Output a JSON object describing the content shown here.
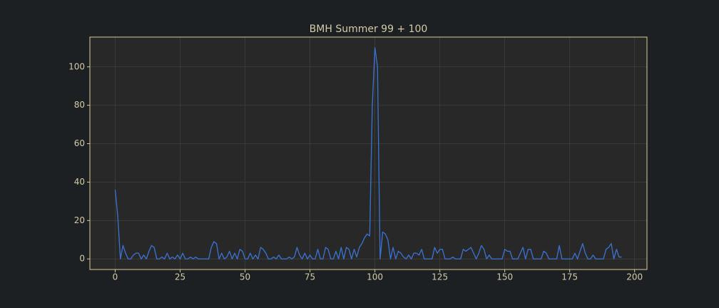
{
  "chart_data": {
    "type": "line",
    "title": "BMH Summer 99 + 100",
    "x": [
      0,
      1,
      2,
      3,
      4,
      5,
      6,
      7,
      8,
      9,
      10,
      11,
      12,
      13,
      14,
      15,
      16,
      17,
      18,
      19,
      20,
      21,
      22,
      23,
      24,
      25,
      26,
      27,
      28,
      29,
      30,
      31,
      32,
      33,
      34,
      35,
      36,
      37,
      38,
      39,
      40,
      41,
      42,
      43,
      44,
      45,
      46,
      47,
      48,
      49,
      50,
      51,
      52,
      53,
      54,
      55,
      56,
      57,
      58,
      59,
      60,
      61,
      62,
      63,
      64,
      65,
      66,
      67,
      68,
      69,
      70,
      71,
      72,
      73,
      74,
      75,
      76,
      77,
      78,
      79,
      80,
      81,
      82,
      83,
      84,
      85,
      86,
      87,
      88,
      89,
      90,
      91,
      92,
      93,
      94,
      95,
      96,
      97,
      98,
      99,
      100,
      101,
      102,
      103,
      104,
      105,
      106,
      107,
      108,
      109,
      110,
      111,
      112,
      113,
      114,
      115,
      116,
      117,
      118,
      119,
      120,
      121,
      122,
      123,
      124,
      125,
      126,
      127,
      128,
      129,
      130,
      131,
      132,
      133,
      134,
      135,
      136,
      137,
      138,
      139,
      140,
      141,
      142,
      143,
      144,
      145,
      146,
      147,
      148,
      149,
      150,
      151,
      152,
      153,
      154,
      155,
      156,
      157,
      158,
      159,
      160,
      161,
      162,
      163,
      164,
      165,
      166,
      167,
      168,
      169,
      170,
      171,
      172,
      173,
      174,
      175,
      176,
      177,
      178,
      179,
      180,
      181,
      182,
      183,
      184,
      185,
      186,
      187,
      188,
      189,
      190,
      191,
      192,
      193,
      194,
      195
    ],
    "series": [
      {
        "name": "BMH Summer 99 + 100",
        "color": "#3a6fc8",
        "values": [
          36,
          22,
          0,
          7,
          3,
          0,
          0,
          2,
          3,
          3,
          0,
          2,
          0,
          4,
          7,
          6,
          0,
          0,
          1,
          0,
          3,
          0,
          1,
          0,
          2,
          0,
          3,
          0,
          0,
          1,
          0,
          1,
          0,
          0,
          0,
          0,
          0,
          6,
          9,
          8,
          0,
          3,
          0,
          1,
          4,
          0,
          3,
          0,
          5,
          4,
          0,
          0,
          3,
          0,
          2,
          0,
          6,
          5,
          3,
          0,
          0,
          1,
          0,
          2,
          0,
          0,
          0,
          1,
          0,
          1,
          6,
          2,
          0,
          3,
          0,
          2,
          0,
          0,
          5,
          0,
          0,
          6,
          5,
          0,
          0,
          4,
          0,
          6,
          0,
          6,
          5,
          0,
          5,
          1,
          6,
          8,
          11,
          13,
          12,
          80,
          110,
          100,
          0,
          14,
          13,
          10,
          0,
          6,
          0,
          4,
          3,
          1,
          0,
          2,
          0,
          3,
          3,
          2,
          5,
          0,
          0,
          0,
          0,
          6,
          3,
          5,
          5,
          0,
          0,
          0,
          1,
          0,
          0,
          0,
          5,
          4,
          5,
          6,
          3,
          0,
          3,
          7,
          5,
          0,
          2,
          0,
          0,
          0,
          0,
          0,
          5,
          4,
          4,
          0,
          0,
          0,
          3,
          6,
          0,
          5,
          5,
          0,
          0,
          0,
          0,
          4,
          3,
          0,
          0,
          0,
          0,
          7,
          0,
          0,
          0,
          0,
          0,
          3,
          0,
          4,
          8,
          3,
          0,
          0,
          2,
          0,
          0,
          0,
          0,
          5,
          6,
          8,
          0,
          5,
          1,
          1
        ]
      }
    ],
    "xlim": [
      -9.75,
      204.75
    ],
    "ylim": [
      -5.5,
      115.5
    ],
    "xticks": [
      0,
      25,
      50,
      75,
      100,
      125,
      150,
      175,
      200
    ],
    "yticks": [
      0,
      20,
      40,
      60,
      80,
      100
    ],
    "grid": true
  }
}
